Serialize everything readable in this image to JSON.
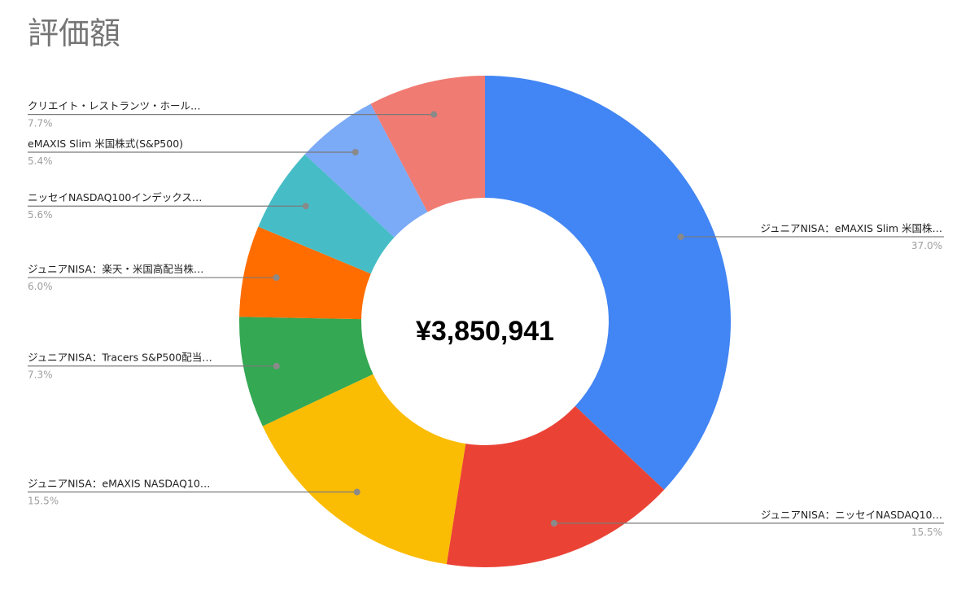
{
  "chart_data": {
    "type": "pie",
    "donut": true,
    "title": "評価額",
    "center_total": "¥3,850,941",
    "legend": "none",
    "slices": [
      {
        "label": "ジュニアNISA：eMAXIS Slim 米国株…",
        "pct_label": "37.0%",
        "value": 37.0,
        "color": "#4285f4",
        "side": "right"
      },
      {
        "label": "ジュニアNISA：ニッセイNASDAQ10…",
        "pct_label": "15.5%",
        "value": 15.5,
        "color": "#ea4335",
        "side": "right"
      },
      {
        "label": "ジュニアNISA：eMAXIS NASDAQ10…",
        "pct_label": "15.5%",
        "value": 15.5,
        "color": "#fbbc04",
        "side": "left"
      },
      {
        "label": "ジュニアNISA：Tracers S&P500配当…",
        "pct_label": "7.3%",
        "value": 7.3,
        "color": "#34a853",
        "side": "left"
      },
      {
        "label": "ジュニアNISA：楽天・米国高配当株…",
        "pct_label": "6.0%",
        "value": 6.0,
        "color": "#ff6d01",
        "side": "left"
      },
      {
        "label": "ニッセイNASDAQ100インデックス…",
        "pct_label": "5.6%",
        "value": 5.6,
        "color": "#46bdc6",
        "side": "left"
      },
      {
        "label": "eMAXIS Slim 米国株式(S&P500)",
        "pct_label": "5.4%",
        "value": 5.4,
        "color": "#7baaf7",
        "side": "left"
      },
      {
        "label": "クリエイト・レストランツ・ホール…",
        "pct_label": "7.7%",
        "value": 7.7,
        "color": "#f07b72",
        "side": "left"
      }
    ]
  }
}
